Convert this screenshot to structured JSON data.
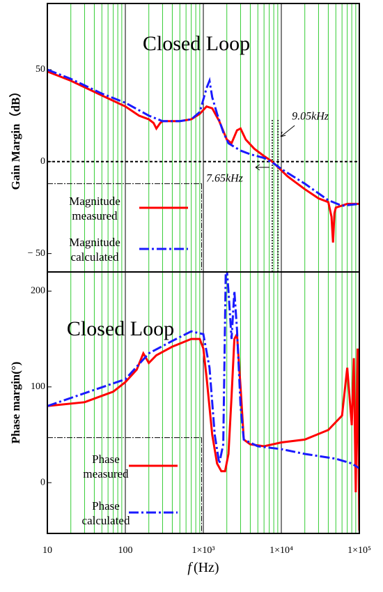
{
  "chart_data": [
    {
      "type": "line",
      "title": "Closed Loop",
      "ylabel": "Gain Margin（dB）",
      "xscale": "log",
      "xlim": [
        10,
        100000
      ],
      "ylim": [
        -60,
        86
      ],
      "yticks": [
        50,
        0,
        {
          "value": -50,
          "label": "− 50"
        }
      ],
      "grid": true,
      "minor_grid": true,
      "legend": "lower left",
      "zero_line": true,
      "guide": {
        "x": 950,
        "y": -12
      },
      "annotations": [
        {
          "text": "9.05kHz",
          "x": 9050
        },
        {
          "text": "7.65kHz",
          "x": 7650
        }
      ],
      "series": [
        {
          "name": "Magnitude measured",
          "color": "#ff0000",
          "linestyle": "solid",
          "x": [
            10,
            20,
            50,
            100,
            150,
            200,
            230,
            250,
            280,
            300,
            500,
            700,
            900,
            1100,
            1300,
            1600,
            2000,
            2300,
            2700,
            3000,
            3500,
            4500,
            6000,
            7650,
            9050,
            12000,
            20000,
            30000,
            40000,
            44000,
            46000,
            48000,
            50000,
            70000,
            100000
          ],
          "values": [
            49,
            44,
            36,
            30,
            25,
            23,
            21,
            18,
            21,
            22,
            22,
            23,
            26,
            30,
            29,
            22,
            12,
            10,
            17,
            18,
            12,
            7,
            3,
            0,
            -3,
            -8,
            -15,
            -20,
            -22,
            -30,
            -44,
            -28,
            -25,
            -23,
            -23
          ]
        },
        {
          "name": "Magnitude calculated",
          "color": "#1a1aff",
          "linestyle": "dashdot",
          "x": [
            10,
            20,
            50,
            100,
            200,
            300,
            500,
            700,
            900,
            1100,
            1200,
            1300,
            1500,
            1800,
            2100,
            2500,
            3000,
            4000,
            6000,
            8000,
            10000,
            20000,
            40000,
            60000,
            100000
          ],
          "values": [
            50,
            45,
            37,
            32,
            25,
            22,
            22,
            23,
            27,
            40,
            44,
            35,
            26,
            16,
            10,
            8,
            6,
            4,
            2,
            -1,
            -4,
            -12,
            -21,
            -24,
            -23
          ]
        }
      ]
    },
    {
      "type": "line",
      "title": "Closed Loop",
      "ylabel": "Phase margin(°)",
      "xlabel_italic": "f",
      "xlabel": "(Hz)",
      "xscale": "log",
      "xlim": [
        10,
        100000
      ],
      "ylim": [
        -53,
        220
      ],
      "yticks": [
        200,
        100,
        0
      ],
      "xticks": [
        10,
        100,
        {
          "value": 1000,
          "label": "1×10³"
        },
        {
          "value": 10000,
          "label": "1×10⁴"
        },
        {
          "value": 100000,
          "label": "1×10⁵"
        }
      ],
      "grid": true,
      "minor_grid": true,
      "legend": "lower left",
      "guide": {
        "x": 950,
        "y": 47
      },
      "series": [
        {
          "name": "Phase measured",
          "color": "#ff0000",
          "linestyle": "solid",
          "x": [
            10,
            30,
            70,
            100,
            140,
            170,
            200,
            250,
            400,
            700,
            900,
            1000,
            1100,
            1300,
            1500,
            1700,
            1900,
            2100,
            2300,
            2500,
            2700,
            3000,
            3300,
            4000,
            6000,
            10000,
            20000,
            40000,
            60000,
            70000,
            80000,
            85000,
            90000,
            95000,
            100000
          ],
          "values": [
            80,
            84,
            95,
            105,
            118,
            135,
            125,
            133,
            142,
            150,
            150,
            140,
            110,
            50,
            20,
            12,
            12,
            30,
            90,
            150,
            155,
            100,
            45,
            40,
            38,
            42,
            45,
            55,
            70,
            120,
            60,
            130,
            -10,
            140,
            -50
          ]
        },
        {
          "name": "Phase calculated",
          "color": "#1a1aff",
          "linestyle": "dashdot",
          "x": [
            10,
            100,
            200,
            400,
            700,
            1000,
            1200,
            1400,
            1600,
            1800,
            1950,
            2100,
            2300,
            2500,
            2700,
            3000,
            3300,
            5000,
            10000,
            20000,
            50000,
            80000,
            100000
          ],
          "values": [
            80,
            108,
            135,
            148,
            158,
            155,
            120,
            50,
            20,
            40,
            235,
            200,
            150,
            200,
            160,
            80,
            45,
            38,
            35,
            30,
            25,
            20,
            15
          ]
        }
      ]
    }
  ]
}
